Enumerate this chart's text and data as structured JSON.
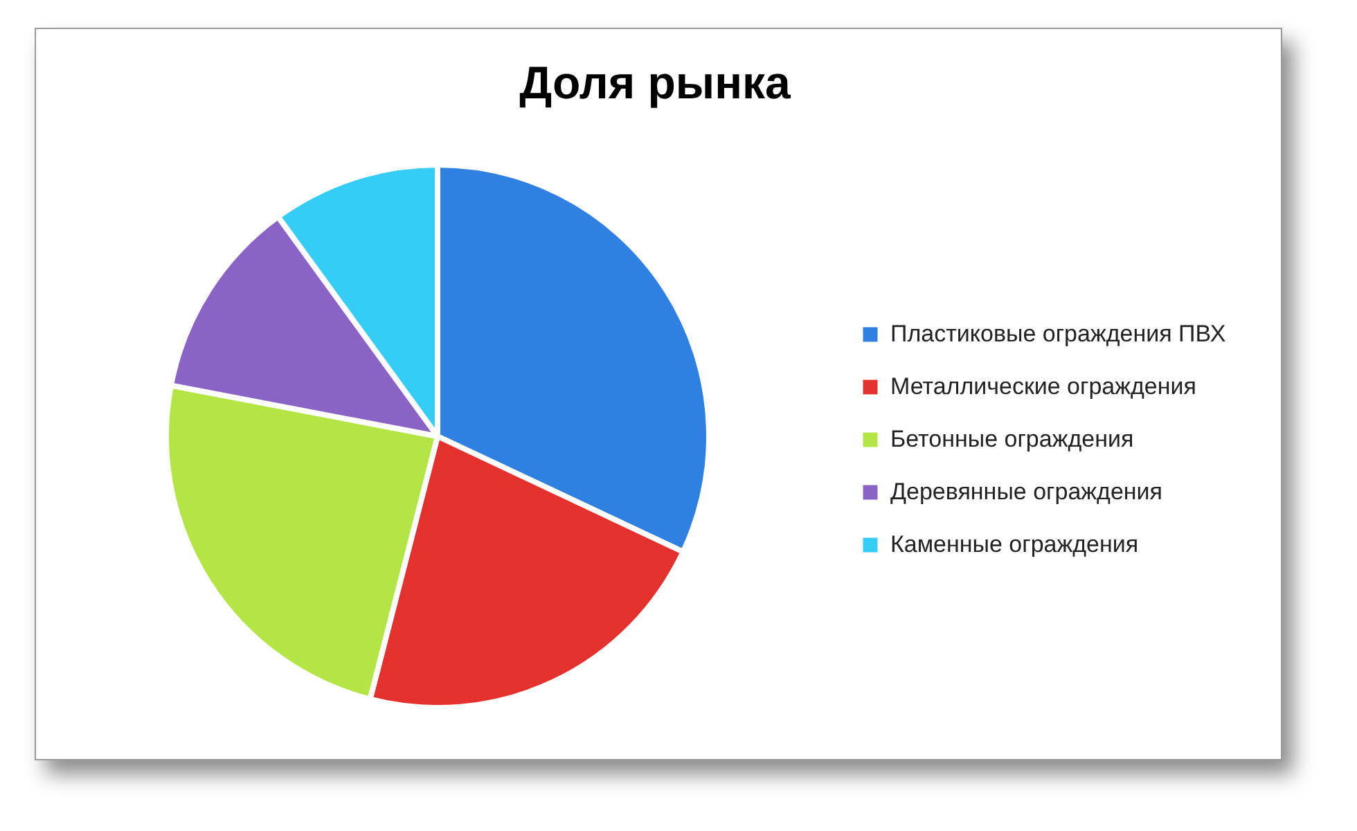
{
  "chart_data": {
    "type": "pie",
    "title": "Доля рынка",
    "categories": [
      "Пластиковые ограждения ПВХ",
      "Металлические ограждения",
      "Бетонные ограждения",
      "Деревянные ограждения",
      "Каменные ограждения"
    ],
    "values": [
      32,
      22,
      24,
      12,
      10
    ],
    "colors": [
      "#2f80e0",
      "#e5312e",
      "#b3e544",
      "#8b63c6",
      "#35cdf6"
    ],
    "legend": "right"
  }
}
